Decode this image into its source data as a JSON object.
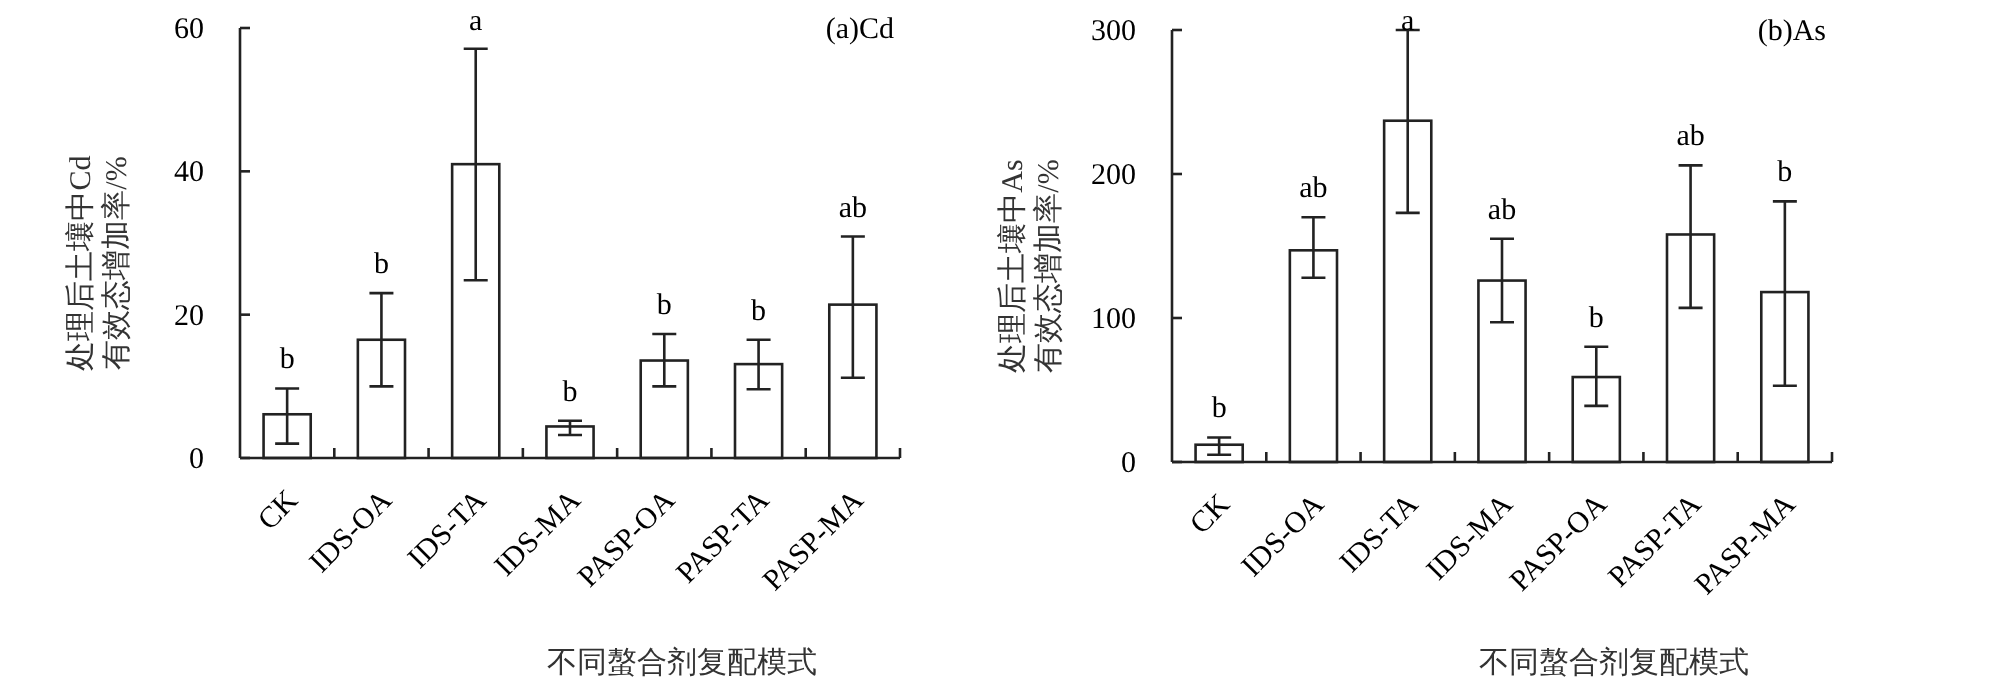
{
  "chart_data": [
    {
      "type": "bar",
      "title": "(a)Cd",
      "xlabel": "不同螯合剂复配模式",
      "ylabel": "处理后土壤中Cd\n有效态增加率/%",
      "categories": [
        "CK",
        "IDS-OA",
        "IDS-TA",
        "IDS-MA",
        "PASP-OA",
        "PASP-TA",
        "PASP-MA"
      ],
      "values": [
        6.1,
        16.5,
        41.0,
        4.4,
        13.6,
        13.1,
        21.4
      ],
      "errors": [
        [
          2.0,
          9.7
        ],
        [
          10.0,
          23.0
        ],
        [
          24.8,
          57.1
        ],
        [
          3.2,
          5.2
        ],
        [
          10.0,
          17.3
        ],
        [
          9.6,
          16.5
        ],
        [
          11.2,
          30.9
        ]
      ],
      "color": "#ffffff",
      "ylim": [
        0,
        60
      ],
      "yticks": [
        0,
        20,
        40,
        60
      ],
      "grid": false,
      "annotations": [
        {
          "text": "b",
          "x": "CK",
          "y": 9.7
        },
        {
          "text": "b",
          "x": "IDS-OA",
          "y": 23.0
        },
        {
          "text": "a",
          "x": "IDS-TA",
          "y": 57.1
        },
        {
          "text": "b",
          "x": "IDS-MA",
          "y": 5.2
        },
        {
          "text": "b",
          "x": "PASP-OA",
          "y": 17.3
        },
        {
          "text": "b",
          "x": "PASP-TA",
          "y": 16.5
        },
        {
          "text": "ab",
          "x": "PASP-MA",
          "y": 30.9
        }
      ]
    },
    {
      "type": "bar",
      "title": "(b)As",
      "xlabel": "不同螯合剂复配模式",
      "ylabel": "处理后土壤中As\n有效态增加率/%",
      "categories": [
        "CK",
        "IDS-OA",
        "IDS-TA",
        "IDS-MA",
        "PASP-OA",
        "PASP-TA",
        "PASP-MA"
      ],
      "values": [
        12,
        147,
        237,
        126,
        59,
        158,
        118
      ],
      "errors": [
        [
          5,
          17
        ],
        [
          128,
          170
        ],
        [
          173,
          300
        ],
        [
          97,
          155
        ],
        [
          39,
          80
        ],
        [
          107,
          206
        ],
        [
          53,
          181
        ]
      ],
      "color": "#ffffff",
      "ylim": [
        0,
        300
      ],
      "yticks": [
        0,
        100,
        200,
        300
      ],
      "grid": false,
      "annotations": [
        {
          "text": "b",
          "x": "CK",
          "y": 17.1
        },
        {
          "text": "ab",
          "x": "IDS-OA",
          "y": 170
        },
        {
          "text": "a",
          "x": "IDS-TA",
          "y": 300
        },
        {
          "text": "ab",
          "x": "IDS-MA",
          "y": 155
        },
        {
          "text": "b",
          "x": "PASP-OA",
          "y": 80
        },
        {
          "text": "ab",
          "x": "PASP-TA",
          "y": 206
        },
        {
          "text": "b",
          "x": "PASP-MA",
          "y": 181
        }
      ]
    }
  ]
}
